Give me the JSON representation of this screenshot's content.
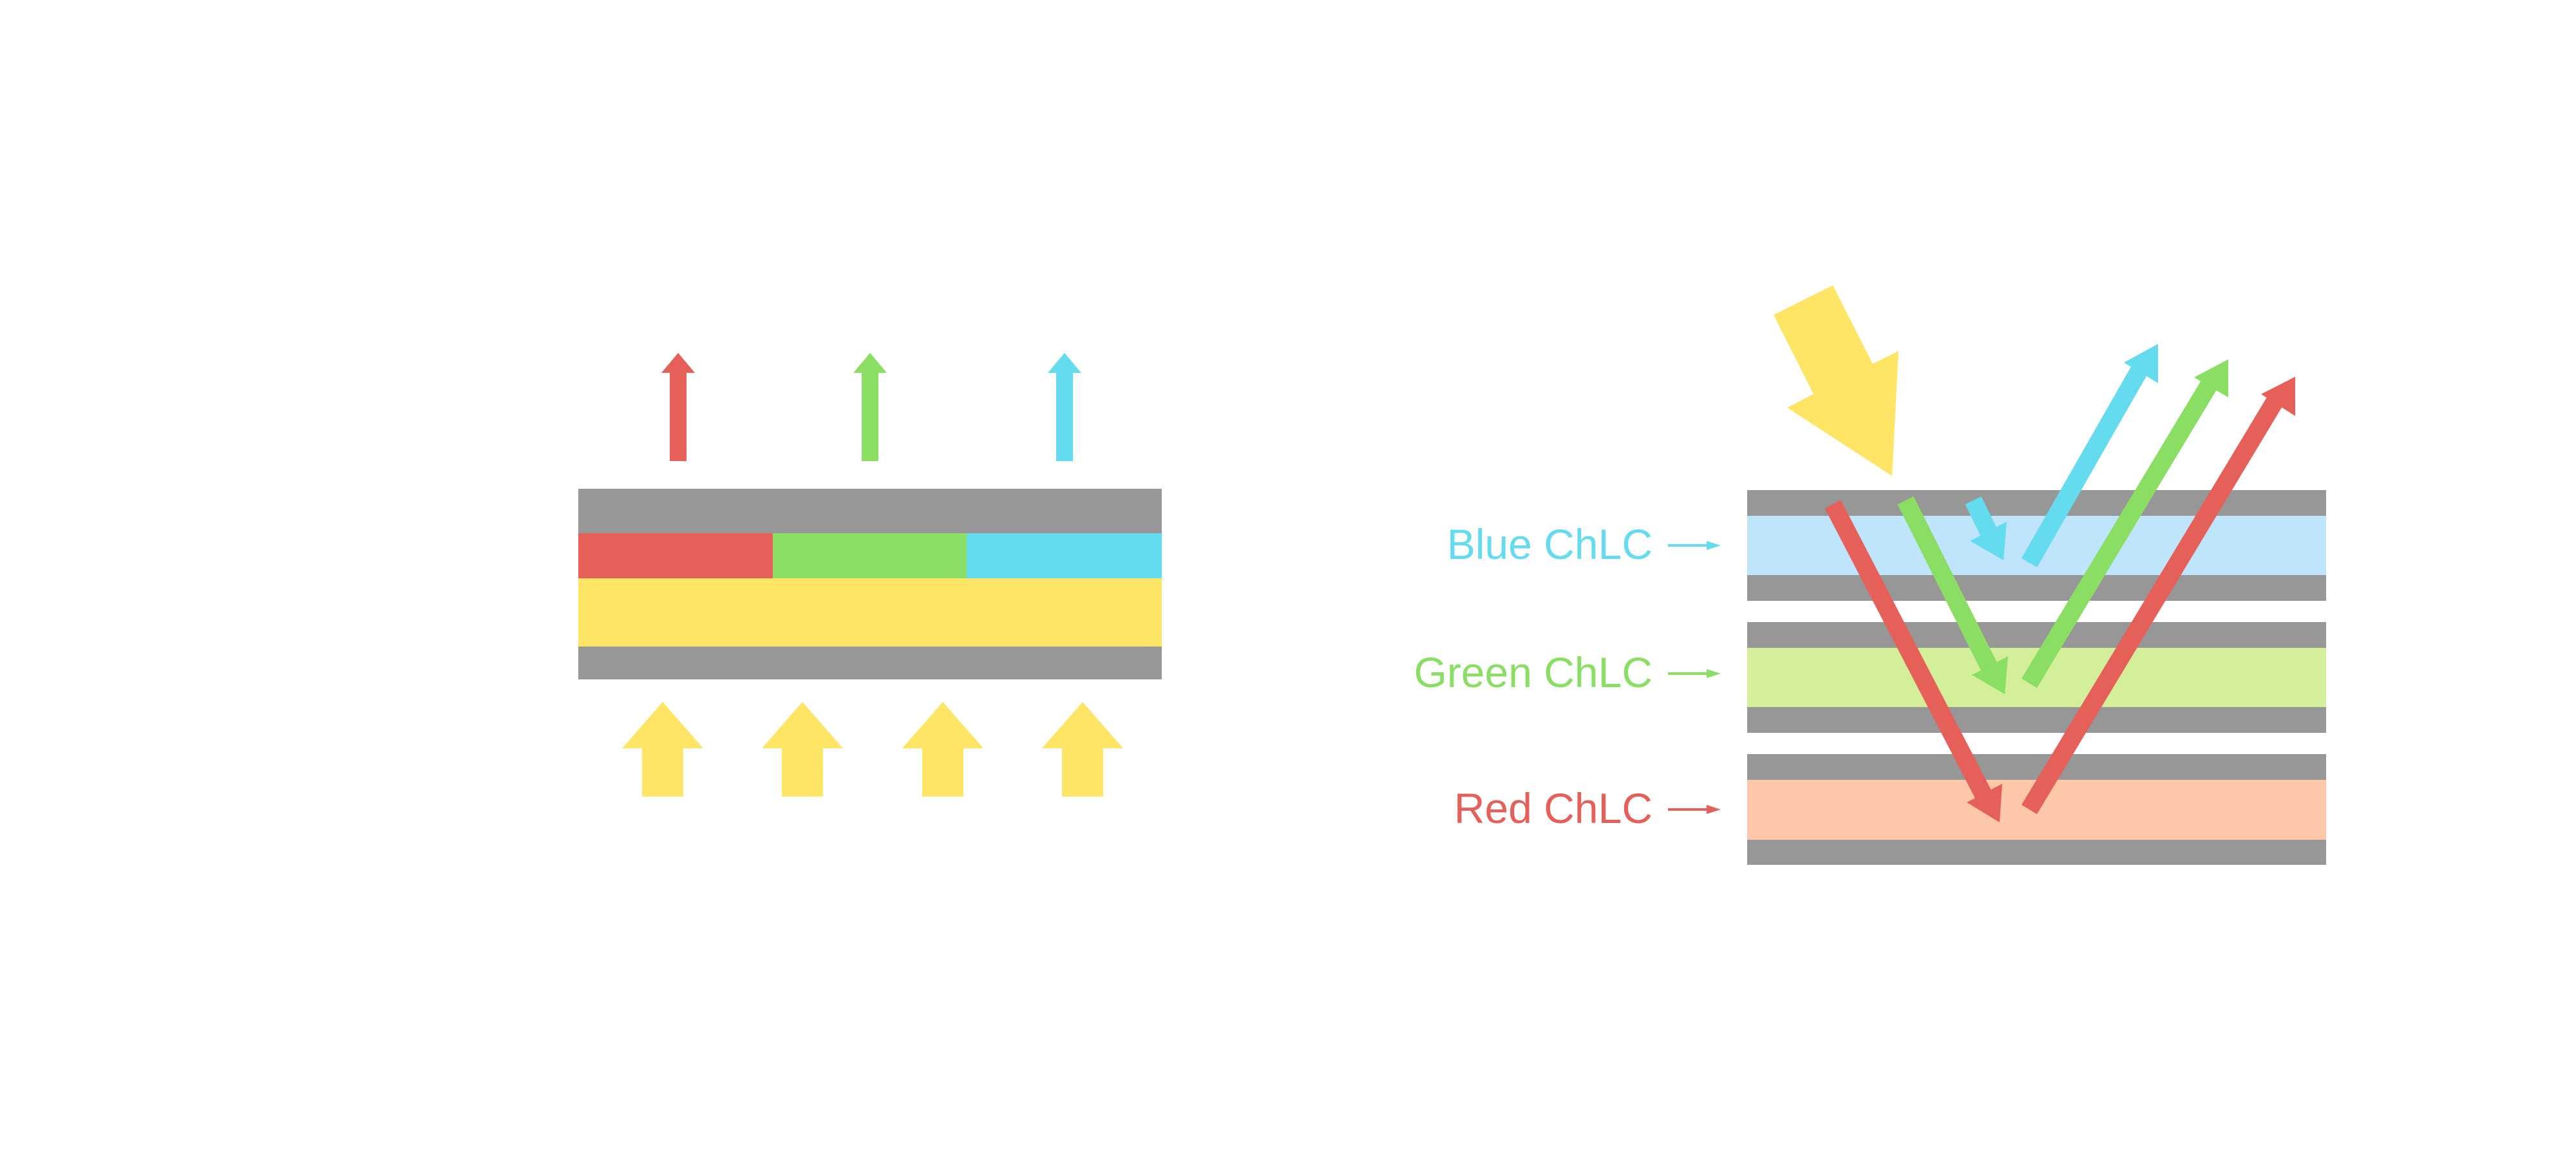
{
  "colors": {
    "red": "#E6605A",
    "green": "#8ADE63",
    "blue": "#64DBEE",
    "yellow": "#FFE566",
    "substrate_gray": "#979797",
    "blue_layer": "#BEE5FB",
    "green_layer": "#D3EF99",
    "red_layer": "#FDC8A9"
  },
  "right_diagram": {
    "labels": {
      "blue": "Blue ChLC",
      "green": "Green ChLC",
      "red": "Red ChLC"
    }
  }
}
